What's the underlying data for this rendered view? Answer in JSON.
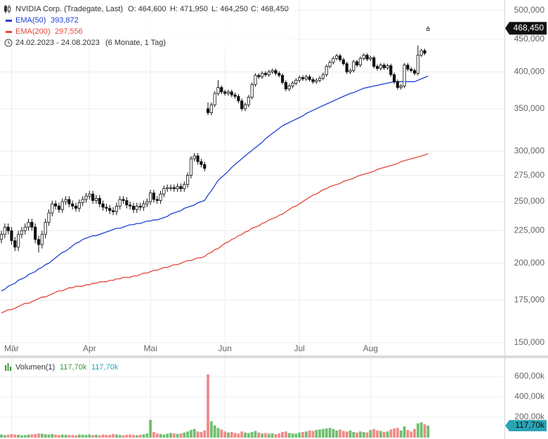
{
  "chart_data": [
    {
      "type": "candlestick",
      "title": "NVIDIA Corp. (Tradegate, Last)",
      "ohlc_labels": [
        "O: 464,600",
        "H: 471,950",
        "L: 464,250",
        "C: 468,450"
      ],
      "period": "24.02.2023 - 24.08.2023",
      "period_note": "(6 Monate, 1 Tag)",
      "tag_label": "468,450",
      "log": true,
      "grid": true,
      "up_color": "#ffffff",
      "down_color": "#111111",
      "ylim": [
        143600,
        515000
      ],
      "yticks": [
        {
          "value": 150000,
          "label": "150,000"
        },
        {
          "value": 175000,
          "label": "175,000"
        },
        {
          "value": 200000,
          "label": "200,000"
        },
        {
          "value": 225000,
          "label": "225,000"
        },
        {
          "value": 250000,
          "label": "250,000"
        },
        {
          "value": 275000,
          "label": "275,000"
        },
        {
          "value": 300000,
          "label": "300,000"
        },
        {
          "value": 350000,
          "label": "350,000"
        },
        {
          "value": 400000,
          "label": "400,000"
        },
        {
          "value": 450000,
          "label": "450,000"
        },
        {
          "value": 500000,
          "label": "500,000"
        }
      ],
      "categories": [
        null,
        null,
        null,
        "Mär",
        null,
        null,
        null,
        null,
        null,
        null,
        null,
        null,
        null,
        null,
        null,
        null,
        null,
        null,
        null,
        null,
        null,
        null,
        null,
        null,
        null,
        null,
        "Apr",
        null,
        null,
        null,
        null,
        null,
        null,
        null,
        null,
        null,
        null,
        null,
        null,
        null,
        null,
        null,
        null,
        null,
        "Mai",
        null,
        null,
        null,
        null,
        null,
        null,
        null,
        null,
        null,
        null,
        null,
        null,
        null,
        null,
        null,
        null,
        null,
        null,
        null,
        null,
        null,
        "Jun",
        null,
        null,
        null,
        null,
        null,
        null,
        null,
        null,
        null,
        null,
        null,
        null,
        null,
        null,
        null,
        null,
        null,
        null,
        null,
        null,
        null,
        "Jul",
        null,
        null,
        null,
        null,
        null,
        null,
        null,
        null,
        null,
        null,
        null,
        null,
        null,
        null,
        null,
        null,
        null,
        null,
        null,
        null,
        "Aug",
        null,
        null,
        null,
        null,
        null,
        null,
        null,
        null,
        null,
        null,
        null,
        null,
        null,
        null,
        null,
        null,
        null
      ],
      "open": [
        218000,
        222000,
        228000,
        225000,
        217000,
        212000,
        222000,
        225000,
        228000,
        232000,
        228000,
        218000,
        214000,
        222000,
        232000,
        240000,
        248000,
        246000,
        243000,
        250000,
        252000,
        248000,
        246000,
        244000,
        249000,
        252000,
        255000,
        257000,
        251000,
        253000,
        248000,
        245000,
        244000,
        242000,
        241000,
        246000,
        252000,
        251000,
        247000,
        246000,
        243000,
        246000,
        245000,
        248000,
        250000,
        258000,
        252000,
        251000,
        257000,
        262000,
        263000,
        263000,
        262000,
        264000,
        262000,
        266000,
        275000,
        292000,
        295000,
        289000,
        286000,
        350000,
        345000,
        355000,
        370000,
        378000,
        372000,
        370000,
        372000,
        368000,
        366000,
        360000,
        350000,
        355000,
        365000,
        382000,
        395000,
        393000,
        398000,
        396000,
        400000,
        402000,
        398000,
        395000,
        385000,
        376000,
        380000,
        384000,
        388000,
        392000,
        390000,
        393000,
        389000,
        386000,
        388000,
        391000,
        396000,
        408000,
        414000,
        420000,
        424000,
        418000,
        412000,
        400000,
        402000,
        415000,
        410000,
        420000,
        425000,
        419000,
        421000,
        408000,
        405000,
        410000,
        406000,
        409000,
        396000,
        386000,
        378000,
        380000,
        410000,
        404000,
        402000,
        398000,
        425000,
        432000,
        464600
      ],
      "high": [
        225000,
        231000,
        231000,
        228000,
        220000,
        225000,
        228000,
        231000,
        235000,
        235000,
        231000,
        221000,
        225000,
        235000,
        243000,
        251000,
        251000,
        249000,
        253000,
        255000,
        255000,
        251000,
        249000,
        252000,
        255000,
        258000,
        260000,
        260000,
        256000,
        256000,
        251000,
        248000,
        247000,
        245000,
        249000,
        255000,
        255000,
        254000,
        250000,
        249000,
        249000,
        249000,
        251000,
        253000,
        261000,
        261000,
        255000,
        260000,
        265000,
        266000,
        266000,
        266000,
        267000,
        267000,
        269000,
        278000,
        295000,
        298000,
        298000,
        292000,
        289000,
        358000,
        358000,
        373000,
        388000,
        381000,
        375000,
        375000,
        375000,
        371000,
        369000,
        363000,
        358000,
        368000,
        385000,
        398000,
        398000,
        401000,
        401000,
        403000,
        405000,
        405000,
        401000,
        398000,
        388000,
        383000,
        387000,
        391000,
        395000,
        395000,
        396000,
        396000,
        392000,
        391000,
        394000,
        399000,
        411000,
        417000,
        423000,
        427000,
        427000,
        421000,
        415000,
        405000,
        418000,
        418000,
        423000,
        428000,
        428000,
        424000,
        424000,
        411000,
        413000,
        413000,
        412000,
        412000,
        399000,
        389000,
        383000,
        413000,
        413000,
        407000,
        405000,
        440000,
        435000,
        435000,
        471950
      ],
      "low": [
        215000,
        219000,
        222000,
        214000,
        209000,
        209000,
        219000,
        222000,
        225000,
        225000,
        215000,
        208000,
        211000,
        219000,
        229000,
        237000,
        243000,
        240000,
        240000,
        247000,
        245000,
        243000,
        241000,
        241000,
        246000,
        249000,
        252000,
        248000,
        248000,
        245000,
        242000,
        241000,
        239000,
        238000,
        238000,
        243000,
        248000,
        244000,
        243000,
        240000,
        240000,
        242000,
        242000,
        245000,
        247000,
        249000,
        248000,
        248000,
        254000,
        259000,
        260000,
        259000,
        259000,
        259000,
        259000,
        263000,
        272000,
        289000,
        286000,
        283000,
        279000,
        342000,
        342000,
        352000,
        367000,
        369000,
        367000,
        367000,
        365000,
        363000,
        357000,
        347000,
        347000,
        352000,
        362000,
        379000,
        390000,
        390000,
        393000,
        393000,
        397000,
        395000,
        392000,
        382000,
        373000,
        373000,
        377000,
        381000,
        385000,
        387000,
        387000,
        386000,
        383000,
        383000,
        385000,
        388000,
        393000,
        405000,
        411000,
        417000,
        415000,
        409000,
        397000,
        397000,
        399000,
        407000,
        407000,
        417000,
        416000,
        416000,
        405000,
        402000,
        402000,
        403000,
        403000,
        393000,
        383000,
        375000,
        375000,
        377000,
        401000,
        399000,
        395000,
        395000,
        422000,
        425000,
        464250
      ],
      "close": [
        222000,
        228000,
        225000,
        217000,
        212000,
        222000,
        225000,
        228000,
        232000,
        228000,
        218000,
        214000,
        222000,
        232000,
        240000,
        248000,
        246000,
        243000,
        250000,
        252000,
        248000,
        246000,
        244000,
        249000,
        252000,
        255000,
        257000,
        251000,
        253000,
        248000,
        245000,
        244000,
        242000,
        241000,
        246000,
        252000,
        251000,
        247000,
        246000,
        243000,
        246000,
        245000,
        248000,
        250000,
        258000,
        252000,
        251000,
        257000,
        262000,
        263000,
        263000,
        262000,
        264000,
        262000,
        266000,
        275000,
        292000,
        295000,
        289000,
        286000,
        282000,
        345000,
        355000,
        370000,
        378000,
        372000,
        370000,
        372000,
        368000,
        366000,
        360000,
        350000,
        355000,
        365000,
        382000,
        395000,
        393000,
        398000,
        396000,
        400000,
        402000,
        398000,
        395000,
        385000,
        376000,
        380000,
        384000,
        388000,
        392000,
        390000,
        393000,
        389000,
        386000,
        388000,
        391000,
        396000,
        408000,
        414000,
        420000,
        424000,
        418000,
        412000,
        400000,
        402000,
        415000,
        410000,
        420000,
        425000,
        419000,
        421000,
        408000,
        405000,
        410000,
        406000,
        409000,
        396000,
        386000,
        378000,
        380000,
        410000,
        404000,
        402000,
        398000,
        425000,
        432000,
        428000,
        468450
      ],
      "series": [
        {
          "name": "EMA(50)",
          "color": "#1f3fd8",
          "last_value_label": "393,872",
          "values": [
            181000,
            182000,
            184000,
            185000,
            186000,
            188000,
            189000,
            190000,
            192000,
            193000,
            194000,
            196000,
            197000,
            199000,
            200000,
            202000,
            204000,
            206000,
            208000,
            209000,
            211000,
            213000,
            215000,
            216000,
            218000,
            219000,
            220000,
            221000,
            221000,
            222000,
            223000,
            224000,
            225000,
            226000,
            227000,
            227000,
            228000,
            229000,
            230000,
            230000,
            231000,
            231000,
            232000,
            233000,
            233000,
            234000,
            234000,
            235000,
            236000,
            237000,
            239000,
            240000,
            241000,
            242000,
            244000,
            245000,
            246000,
            247000,
            249000,
            250000,
            251000,
            256000,
            260000,
            265000,
            270000,
            273000,
            276000,
            279000,
            283000,
            286000,
            289000,
            292000,
            295000,
            298000,
            301000,
            304000,
            307000,
            310000,
            314000,
            317000,
            320000,
            323000,
            326000,
            329000,
            331000,
            333000,
            335000,
            337000,
            339000,
            341000,
            344000,
            346000,
            348000,
            350000,
            352000,
            354000,
            356000,
            358000,
            360000,
            362000,
            364000,
            366000,
            368000,
            370000,
            371000,
            373000,
            375000,
            377000,
            378000,
            379000,
            380000,
            381000,
            382000,
            383000,
            384000,
            385000,
            386000,
            386000,
            386000,
            386000,
            386000,
            386000,
            386000,
            388000,
            390000,
            392000,
            393872
          ]
        },
        {
          "name": "EMA(200)",
          "color": "#e5463a",
          "last_value_label": "297,556",
          "values": [
            167000,
            168000,
            169000,
            169000,
            170000,
            171000,
            172000,
            173000,
            173000,
            174000,
            175000,
            176000,
            177000,
            177000,
            178000,
            179000,
            180000,
            181000,
            181000,
            182000,
            183000,
            183000,
            184000,
            184000,
            184000,
            185000,
            185000,
            186000,
            186000,
            187000,
            187000,
            187000,
            188000,
            188000,
            189000,
            189000,
            190000,
            190000,
            190000,
            191000,
            191000,
            192000,
            193000,
            193000,
            194000,
            195000,
            195000,
            196000,
            197000,
            197000,
            198000,
            199000,
            199000,
            200000,
            201000,
            202000,
            202000,
            203000,
            204000,
            204000,
            205000,
            207000,
            208000,
            210000,
            211000,
            213000,
            215000,
            216000,
            218000,
            219000,
            221000,
            222000,
            224000,
            225000,
            227000,
            228000,
            229000,
            231000,
            232000,
            234000,
            235000,
            236000,
            238000,
            239000,
            241000,
            243000,
            245000,
            246000,
            248000,
            250000,
            252000,
            254000,
            256000,
            257000,
            259000,
            261000,
            262000,
            264000,
            265000,
            266000,
            267000,
            269000,
            270000,
            271000,
            272000,
            274000,
            275000,
            276000,
            277000,
            278000,
            279000,
            281000,
            282000,
            283000,
            284000,
            285000,
            286000,
            287000,
            289000,
            290000,
            291000,
            292000,
            293000,
            294000,
            295000,
            296000,
            297556
          ]
        }
      ]
    },
    {
      "type": "bar",
      "title": "Volumen(1)",
      "header_labels": [
        "117,70k",
        "117,70k"
      ],
      "tag_label": "117,70k",
      "up_color": "#6fbf6f",
      "down_color": "#f08a8a",
      "grid": true,
      "ylim": [
        0,
        780000
      ],
      "yticks": [
        {
          "value": 200000,
          "label": "200,00k"
        },
        {
          "value": 400000,
          "label": "400,00k"
        },
        {
          "value": 600000,
          "label": "600,00k"
        }
      ],
      "values": [
        30000,
        25000,
        28000,
        35000,
        30000,
        28000,
        22000,
        25000,
        30000,
        32000,
        35000,
        40000,
        38000,
        33000,
        30000,
        35000,
        28000,
        25000,
        30000,
        28000,
        26000,
        24000,
        22000,
        30000,
        28000,
        26000,
        32000,
        25000,
        28000,
        22000,
        30000,
        26000,
        28000,
        35000,
        30000,
        25000,
        22000,
        28000,
        30000,
        26000,
        24000,
        28000,
        32000,
        40000,
        175000,
        55000,
        40000,
        35000,
        30000,
        38000,
        45000,
        40000,
        36000,
        42000,
        50000,
        60000,
        75000,
        85000,
        60000,
        55000,
        70000,
        620000,
        160000,
        120000,
        95000,
        80000,
        60000,
        50000,
        55000,
        45000,
        40000,
        60000,
        50000,
        45000,
        55000,
        65000,
        50000,
        40000,
        45000,
        38000,
        42000,
        35000,
        40000,
        55000,
        60000,
        45000,
        40000,
        38000,
        50000,
        55000,
        60000,
        70000,
        65000,
        75000,
        80000,
        85000,
        90000,
        95000,
        85000,
        70000,
        80000,
        65000,
        60000,
        70000,
        55000,
        50000,
        60000,
        55000,
        50000,
        75000,
        85000,
        70000,
        65000,
        55000,
        60000,
        80000,
        90000,
        95000,
        70000,
        110000,
        75000,
        60000,
        85000,
        140000,
        150000,
        130000,
        117700
      ]
    }
  ]
}
